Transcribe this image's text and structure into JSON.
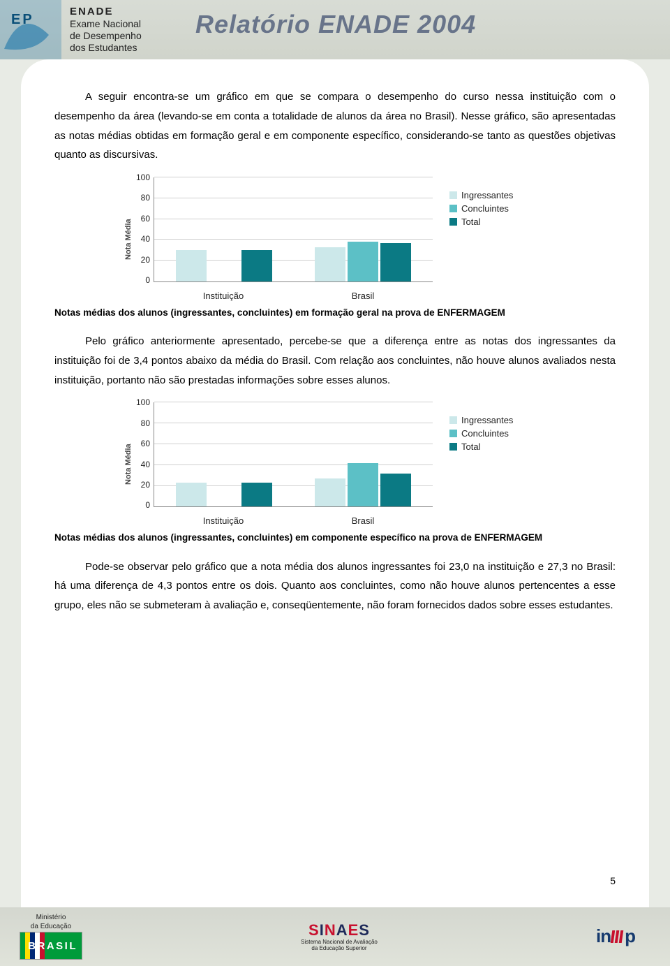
{
  "header": {
    "enade": "ENADE",
    "sub1": "Exame Nacional",
    "sub2": "de Desempenho",
    "sub3": "dos Estudantes",
    "title": "Relatório ENADE 2004"
  },
  "para1": "A seguir encontra-se um gráfico em que se compara o desempenho do curso nessa instituição com o desempenho da área (levando-se em conta a totalidade de alunos da área no Brasil). Nesse gráfico, são apresentadas as notas médias obtidas em formação geral e em componente específico, considerando-se tanto as questões objetivas quanto as discursivas.",
  "chart1": {
    "type": "bar",
    "ylabel": "Nota Média",
    "ylim": [
      0,
      100
    ],
    "ytick_step": 20,
    "yticks": [
      "0",
      "20",
      "40",
      "60",
      "80",
      "100"
    ],
    "grid_color": "#d0d0d0",
    "background_color": "#ffffff",
    "categories": [
      "Instituição",
      "Brasil"
    ],
    "series": [
      {
        "name": "Ingressantes",
        "color": "#cce8ea",
        "values": [
          30,
          33
        ]
      },
      {
        "name": "Concluintes",
        "color": "#5cc0c6",
        "values": [
          0,
          38
        ]
      },
      {
        "name": "Total",
        "color": "#0b7a84",
        "values": [
          30,
          37
        ]
      }
    ],
    "legend_labels": [
      "Ingressantes",
      "Concluintes",
      "Total"
    ]
  },
  "caption1": "Notas médias dos alunos (ingressantes, concluintes) em formação geral na prova de ENFERMAGEM",
  "para2": "Pelo gráfico anteriormente apresentado, percebe-se que a diferença entre as notas dos ingressantes da instituição foi de 3,4 pontos abaixo da média do Brasil. Com relação aos concluintes, não houve alunos avaliados nesta instituição, portanto não são prestadas informações sobre esses alunos.",
  "chart2": {
    "type": "bar",
    "ylabel": "Nota Média",
    "ylim": [
      0,
      100
    ],
    "ytick_step": 20,
    "yticks": [
      "0",
      "20",
      "40",
      "60",
      "80",
      "100"
    ],
    "grid_color": "#d0d0d0",
    "background_color": "#ffffff",
    "categories": [
      "Instituição",
      "Brasil"
    ],
    "series": [
      {
        "name": "Ingressantes",
        "color": "#cce8ea",
        "values": [
          23,
          27
        ]
      },
      {
        "name": "Concluintes",
        "color": "#5cc0c6",
        "values": [
          0,
          42
        ]
      },
      {
        "name": "Total",
        "color": "#0b7a84",
        "values": [
          23,
          32
        ]
      }
    ],
    "legend_labels": [
      "Ingressantes",
      "Concluintes",
      "Total"
    ]
  },
  "caption2": "Notas médias dos alunos (ingressantes, concluintes) em componente específico na prova de ENFERMAGEM",
  "para3": "Pode-se observar pelo gráfico que a nota média dos alunos ingressantes foi 23,0 na instituição e 27,3 no Brasil: há uma diferença de 4,3 pontos entre os dois. Quanto aos concluintes, como não houve alunos pertencentes a esse grupo, eles não se submeteram à avaliação e, conseqüentemente, não foram fornecidos dados sobre esses estudantes.",
  "page_number": "5",
  "footer": {
    "ministerio": "Ministério",
    "da_educacao": "da Educação",
    "brasil": "BRASIL",
    "sinaes": "SINAES",
    "sinaes_sub1": "Sistema Nacional de Avaliação",
    "sinaes_sub2": "da Educação Superior",
    "inep": "inep"
  }
}
